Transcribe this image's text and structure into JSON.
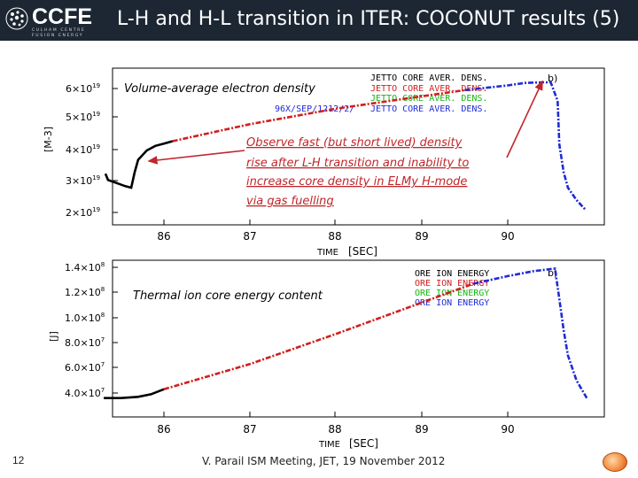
{
  "slide": {
    "title": "L-H and H-L transition in ITER: COCONUT results (5)",
    "logo_text": "CCFE",
    "logo_sub_1": "CULHAM CENTRE",
    "logo_sub_2": "FUSION ENERGY",
    "page_number": "12",
    "footer": "V. Parail  ISM Meeting, JET, 19 November 2012"
  },
  "colors": {
    "header_bg": "#1d2733",
    "arrow": "#c0262a",
    "black": "#000000",
    "red": "#d21e1e",
    "blue": "#1f2bd6",
    "green": "#16b516"
  },
  "top_panel": {
    "caption": "Volume-average electron density",
    "panel_label": "b)",
    "ylabel": "[M-3]",
    "yticks": [
      "6×10",
      "5×10",
      "4×10",
      "3×10",
      "2×10"
    ],
    "ytick_exp": [
      "19",
      "19",
      "19",
      "19",
      "19"
    ],
    "xticks": [
      "86",
      "87",
      "88",
      "89",
      "90"
    ],
    "xlabel": "TIME",
    "xunit": "[SEC]",
    "legend": [
      "JETTO CORE AVER. DENS.",
      "JETTO CORE AVER. DENS.",
      "JETTO CORE AVER. DENS.",
      "JETTO CORE AVER. DENS."
    ],
    "legend_prefix": "96X/SEP/1212/2/",
    "annotation": [
      "Observe fast (but short lived) density",
      "rise after L-H transition and inability to",
      "increase core density in ELMy H-mode",
      "via gas fuelling"
    ]
  },
  "bottom_panel": {
    "caption": "Thermal ion core energy content",
    "panel_label": "b)",
    "ylabel": "[J]",
    "yticks": [
      "1.4×10",
      "1.2×10",
      "1.0×10",
      "8.0×10",
      "6.0×10",
      "4.0×10"
    ],
    "ytick_exp": [
      "8",
      "8",
      "8",
      "7",
      "7",
      "7"
    ],
    "xticks": [
      "86",
      "87",
      "88",
      "89",
      "90"
    ],
    "xlabel": "TIME",
    "xunit": "[SEC]",
    "legend": [
      "ORE ION ENERGY",
      "ORE ION ENERGY",
      "ORE ION ENERGY",
      "ORE ION ENERGY"
    ]
  },
  "chart_data": [
    {
      "type": "line",
      "title": "Volume-average electron density",
      "xlabel": "TIME [SEC]",
      "ylabel": "[M-3]",
      "xlim": [
        85.3,
        90.95
      ],
      "ylim": [
        1.9e+19,
        6.4e+19
      ],
      "series": [
        {
          "name": "JETTO CORE AVER. DENS. (black)",
          "x": [
            85.32,
            85.35,
            85.45,
            85.55,
            85.62,
            85.66,
            85.7,
            85.8,
            85.9,
            86.0,
            86.1
          ],
          "y": [
            3.25e+19,
            3.05e+19,
            2.95e+19,
            2.85e+19,
            2.8e+19,
            3.3e+19,
            3.7e+19,
            4e+19,
            4.15e+19,
            4.22e+19,
            4.3e+19
          ]
        },
        {
          "name": "JETTO CORE AVER. DENS. (red)",
          "x": [
            86.1,
            87.0,
            88.0,
            89.0,
            89.5
          ],
          "y": [
            4.3e+19,
            4.85e+19,
            5.35e+19,
            5.75e+19,
            5.95e+19
          ]
        },
        {
          "name": "JETTO CORE AVER. DENS. (blue)",
          "x": [
            89.5,
            90.0,
            90.2,
            90.4,
            90.5,
            90.58,
            90.6,
            90.65,
            90.7,
            90.8,
            90.9
          ],
          "y": [
            5.95e+19,
            6.1e+19,
            6.18e+19,
            6.2e+19,
            6.2e+19,
            5.6e+19,
            4.2e+19,
            3.3e+19,
            2.8e+19,
            2.4e+19,
            2.1e+19
          ]
        }
      ]
    },
    {
      "type": "line",
      "title": "Thermal ion core energy content",
      "xlabel": "TIME [SEC]",
      "ylabel": "[J]",
      "xlim": [
        85.3,
        90.95
      ],
      "ylim": [
        32000000.0,
        145000000.0
      ],
      "series": [
        {
          "name": "ORE ION ENERGY (black)",
          "x": [
            85.3,
            85.5,
            85.7,
            85.85,
            86.0
          ],
          "y": [
            36000000.0,
            36000000.0,
            37000000.0,
            39000000.0,
            43000000.0
          ]
        },
        {
          "name": "ORE ION ENERGY (red)",
          "x": [
            86.0,
            87.0,
            88.0,
            89.0,
            89.6
          ],
          "y": [
            43000000.0,
            63000000.0,
            87000000.0,
            112000000.0,
            127000000.0
          ]
        },
        {
          "name": "ORE ION ENERGY (blue)",
          "x": [
            89.6,
            90.0,
            90.3,
            90.55,
            90.6,
            90.65,
            90.7,
            90.8,
            90.92
          ],
          "y": [
            127000000.0,
            133000000.0,
            137000000.0,
            139000000.0,
            115000000.0,
            90000000.0,
            70000000.0,
            50000000.0,
            36000000.0
          ]
        }
      ]
    }
  ]
}
